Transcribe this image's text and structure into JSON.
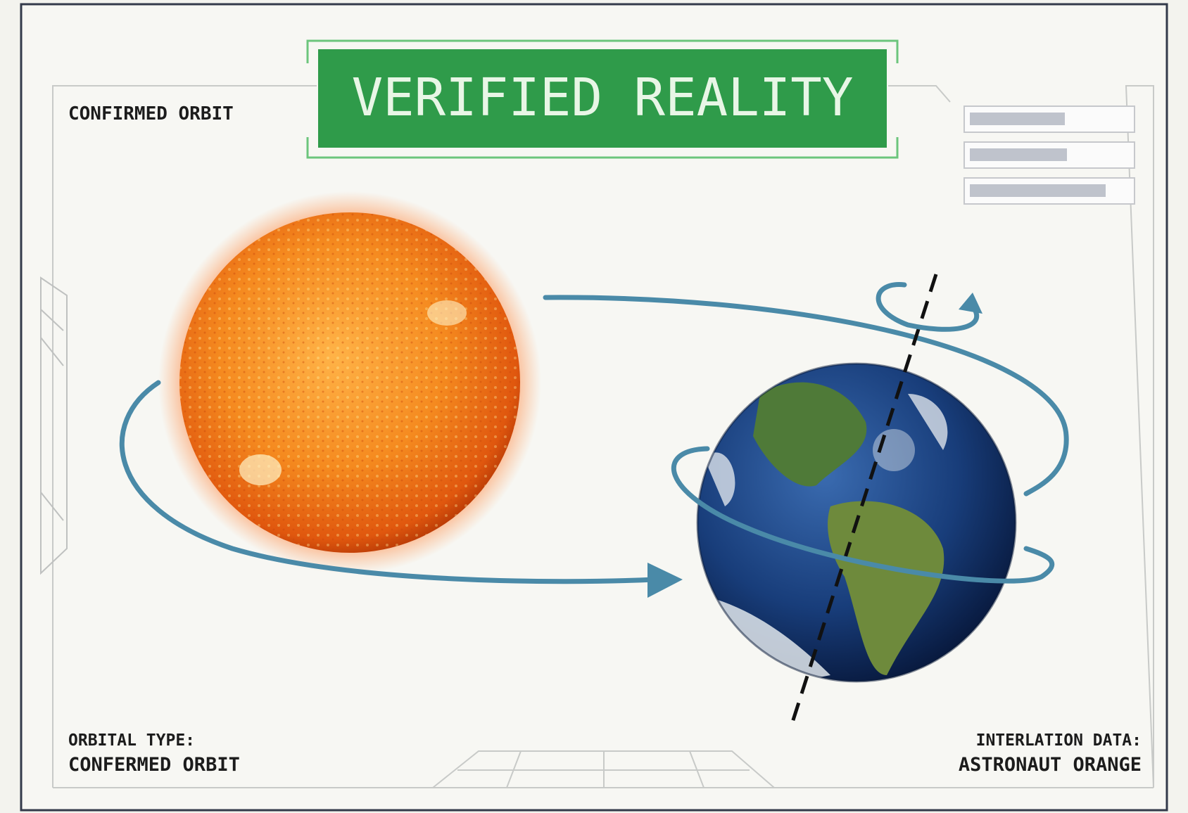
{
  "header": {
    "title": "VERIFIED REALITY"
  },
  "labels": {
    "top_left": "CONFIRMED ORBIT",
    "bottom_left": {
      "heading": "ORBITAL TYPE:",
      "value": "CONFERMED ORBIT"
    },
    "bottom_right": {
      "heading": "INTERLATION DATA:",
      "value": "ASTRONAUT ORANGE"
    }
  }
}
